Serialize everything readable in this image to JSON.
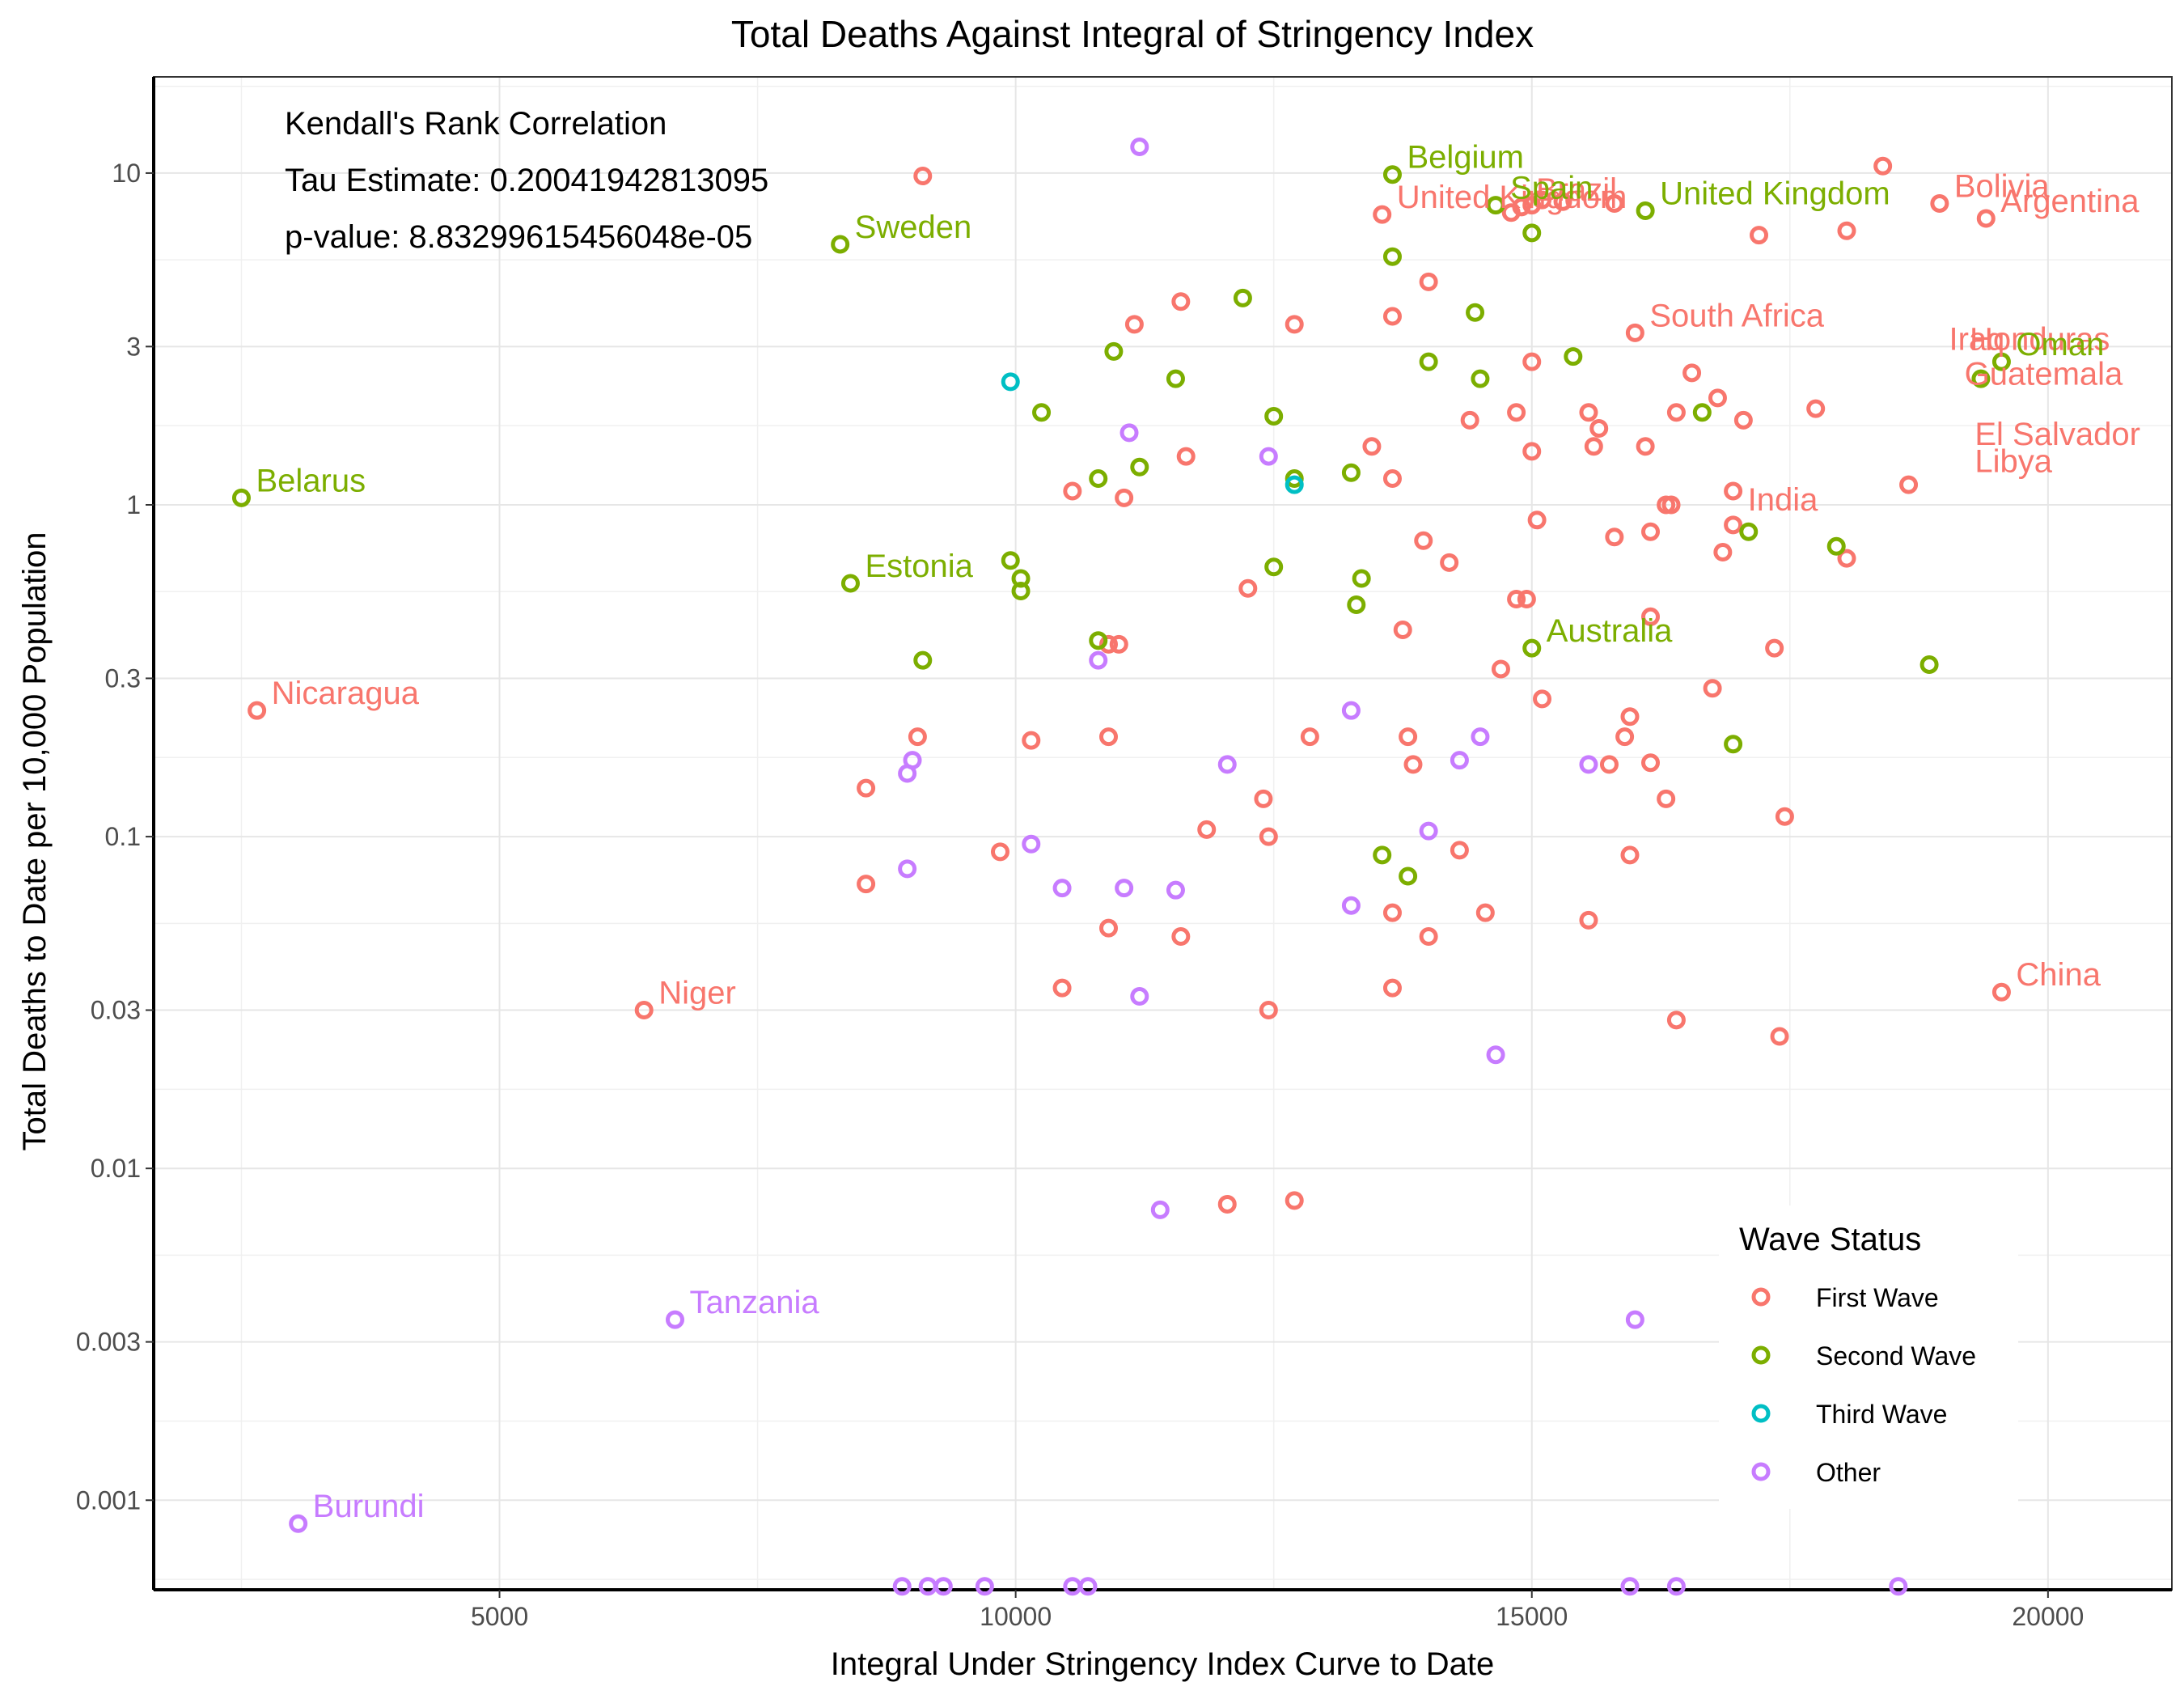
{
  "chart_data": {
    "type": "scatter",
    "title": "Total Deaths Against Integral of Stringency Index",
    "xlabel": "Integral Under Stringency Index Curve to Date",
    "ylabel": "Total Deaths to Date per 10,000 Population",
    "xlim": [
      1650,
      21200
    ],
    "ylim_log10": [
      -3.27,
      1.29
    ],
    "y_scale": "log10",
    "grid": true,
    "x_ticks": [
      {
        "value": 5000,
        "label": "5000"
      },
      {
        "value": 10000,
        "label": "10000"
      },
      {
        "value": 15000,
        "label": "15000"
      },
      {
        "value": 20000,
        "label": "20000"
      }
    ],
    "y_ticks": [
      {
        "value": 0.001,
        "label": "0.001"
      },
      {
        "value": 0.003,
        "label": "0.003"
      },
      {
        "value": 0.01,
        "label": "0.01"
      },
      {
        "value": 0.03,
        "label": "0.03"
      },
      {
        "value": 0.1,
        "label": "0.1"
      },
      {
        "value": 0.3,
        "label": "0.3"
      },
      {
        "value": 1,
        "label": "1"
      },
      {
        "value": 3,
        "label": "3"
      },
      {
        "value": 10,
        "label": "10"
      }
    ],
    "annotation_lines": [
      "Kendall's Rank Correlation",
      "Tau Estimate: 0.20041942813095",
      "p-value: 8.83299615456048e-05"
    ],
    "legend": {
      "title": "Wave Status",
      "placement": "bottom-right",
      "entries": [
        "First Wave",
        "Second Wave",
        "Third Wave",
        "Other"
      ]
    },
    "colors": {
      "First Wave": "#F8766D",
      "Second Wave": "#7CAE00",
      "Third Wave": "#00BFC4",
      "Other": "#C77CFF"
    },
    "series": [
      {
        "name": "First Wave",
        "points": [
          [
            9100,
            9.8
          ],
          [
            18400,
            10.5
          ],
          [
            13550,
            7.5
          ],
          [
            17200,
            6.5
          ],
          [
            18050,
            6.7
          ],
          [
            18950,
            8.1
          ],
          [
            19400,
            7.3
          ],
          [
            14800,
            7.6
          ],
          [
            14900,
            7.9
          ],
          [
            15000,
            8.0
          ],
          [
            15100,
            8.3
          ],
          [
            15300,
            8.2
          ],
          [
            15800,
            8.1
          ],
          [
            14000,
            4.7
          ],
          [
            11600,
            4.1
          ],
          [
            11150,
            3.5
          ],
          [
            12700,
            3.5
          ],
          [
            13650,
            3.7
          ],
          [
            16000,
            3.3
          ],
          [
            15000,
            2.7
          ],
          [
            16550,
            2.5
          ],
          [
            16800,
            2.1
          ],
          [
            17050,
            1.8
          ],
          [
            17750,
            1.95
          ],
          [
            15550,
            1.9
          ],
          [
            16400,
            1.9
          ],
          [
            14850,
            1.9
          ],
          [
            14400,
            1.8
          ],
          [
            15650,
            1.7
          ],
          [
            15600,
            1.5
          ],
          [
            16100,
            1.5
          ],
          [
            13450,
            1.5
          ],
          [
            15000,
            1.45
          ],
          [
            11650,
            1.4
          ],
          [
            13650,
            1.2
          ],
          [
            10550,
            1.1
          ],
          [
            11050,
            1.05
          ],
          [
            16950,
            1.1
          ],
          [
            18650,
            1.15
          ],
          [
            16350,
            1.0
          ],
          [
            16300,
            1.0
          ],
          [
            15050,
            0.9
          ],
          [
            16950,
            0.87
          ],
          [
            16150,
            0.83
          ],
          [
            15800,
            0.8
          ],
          [
            13950,
            0.78
          ],
          [
            16850,
            0.72
          ],
          [
            18050,
            0.69
          ],
          [
            14200,
            0.67
          ],
          [
            12250,
            0.56
          ],
          [
            14850,
            0.52
          ],
          [
            14950,
            0.52
          ],
          [
            16150,
            0.46
          ],
          [
            13750,
            0.42
          ],
          [
            10900,
            0.38
          ],
          [
            11000,
            0.38
          ],
          [
            17350,
            0.37
          ],
          [
            14700,
            0.32
          ],
          [
            16750,
            0.28
          ],
          [
            15100,
            0.26
          ],
          [
            15950,
            0.23
          ],
          [
            15900,
            0.2
          ],
          [
            9050,
            0.2
          ],
          [
            10150,
            0.195
          ],
          [
            10900,
            0.2
          ],
          [
            12850,
            0.2
          ],
          [
            13800,
            0.2
          ],
          [
            13850,
            0.165
          ],
          [
            15750,
            0.165
          ],
          [
            16150,
            0.167
          ],
          [
            8550,
            0.14
          ],
          [
            12400,
            0.13
          ],
          [
            16300,
            0.13
          ],
          [
            17450,
            0.115
          ],
          [
            11850,
            0.105
          ],
          [
            12450,
            0.1
          ],
          [
            14300,
            0.091
          ],
          [
            15950,
            0.088
          ],
          [
            9850,
            0.09
          ],
          [
            8550,
            0.072
          ],
          [
            13650,
            0.059
          ],
          [
            14550,
            0.059
          ],
          [
            15550,
            0.056
          ],
          [
            10900,
            0.053
          ],
          [
            11600,
            0.05
          ],
          [
            14000,
            0.05
          ],
          [
            19550,
            0.034
          ],
          [
            10450,
            0.035
          ],
          [
            13650,
            0.035
          ],
          [
            12450,
            0.03
          ],
          [
            16400,
            0.028
          ],
          [
            17400,
            0.025
          ],
          [
            12700,
            0.008
          ],
          [
            12050,
            0.0078
          ],
          [
            2650,
            0.24
          ],
          [
            6400,
            0.03
          ]
        ],
        "labeled": [
          {
            "name": "Nicaragua",
            "x": 2650,
            "y": 0.24
          },
          {
            "name": "Niger",
            "x": 6400,
            "y": 0.03
          },
          {
            "name": "United Kingdom",
            "x": 13550,
            "y": 7.5
          },
          {
            "name": "Brazil",
            "x": 14900,
            "y": 7.9
          },
          {
            "name": "Bolivia",
            "x": 18950,
            "y": 8.1
          },
          {
            "name": "Argentina",
            "x": 19400,
            "y": 7.3
          },
          {
            "name": "South Africa",
            "x": 16000,
            "y": 3.3
          },
          {
            "name": "Iraq",
            "x": 18900,
            "y": 2.8
          },
          {
            "name": "Honduras",
            "x": 19100,
            "y": 2.8
          },
          {
            "name": "Guatemala",
            "x": 19050,
            "y": 2.2
          },
          {
            "name": "El Salvador",
            "x": 19150,
            "y": 1.45
          },
          {
            "name": "Libya",
            "x": 19150,
            "y": 1.2
          },
          {
            "name": "India",
            "x": 16950,
            "y": 0.92
          },
          {
            "name": "China",
            "x": 19550,
            "y": 0.034
          }
        ]
      },
      {
        "name": "Second Wave",
        "points": [
          [
            13650,
            9.9
          ],
          [
            14650,
            8.0
          ],
          [
            16100,
            7.7
          ],
          [
            15000,
            6.6
          ],
          [
            8300,
            6.1
          ],
          [
            13650,
            5.6
          ],
          [
            12200,
            4.2
          ],
          [
            14450,
            3.8
          ],
          [
            15400,
            2.8
          ],
          [
            10950,
            2.9
          ],
          [
            14000,
            2.7
          ],
          [
            11550,
            2.4
          ],
          [
            14500,
            2.4
          ],
          [
            10250,
            1.9
          ],
          [
            12500,
            1.85
          ],
          [
            16650,
            1.9
          ],
          [
            11200,
            1.3
          ],
          [
            10800,
            1.2
          ],
          [
            12700,
            1.2
          ],
          [
            13250,
            1.25
          ],
          [
            19350,
            2.4
          ],
          [
            19550,
            2.7
          ],
          [
            17100,
            0.83
          ],
          [
            17950,
            0.75
          ],
          [
            9950,
            0.68
          ],
          [
            12500,
            0.65
          ],
          [
            10050,
            0.6
          ],
          [
            10050,
            0.55
          ],
          [
            13350,
            0.6
          ],
          [
            13300,
            0.5
          ],
          [
            10800,
            0.39
          ],
          [
            15000,
            0.37
          ],
          [
            9100,
            0.34
          ],
          [
            18850,
            0.33
          ],
          [
            16950,
            0.19
          ],
          [
            13550,
            0.088
          ],
          [
            13800,
            0.076
          ],
          [
            2500,
            1.05
          ],
          [
            8400,
            0.58
          ]
        ],
        "labeled": [
          {
            "name": "Belarus",
            "x": 2500,
            "y": 1.05
          },
          {
            "name": "Estonia",
            "x": 8400,
            "y": 0.58
          },
          {
            "name": "Sweden",
            "x": 8300,
            "y": 6.1
          },
          {
            "name": "Belgium",
            "x": 13650,
            "y": 9.9
          },
          {
            "name": "Spain",
            "x": 14650,
            "y": 8.0
          },
          {
            "name": "United Kingdom",
            "x": 16100,
            "y": 7.7
          },
          {
            "name": "Oman",
            "x": 19550,
            "y": 2.7
          },
          {
            "name": "Australia",
            "x": 15000,
            "y": 0.37
          }
        ]
      },
      {
        "name": "Third Wave",
        "points": [
          [
            9950,
            2.35
          ],
          [
            12700,
            1.15
          ]
        ],
        "labeled": []
      },
      {
        "name": "Other",
        "points": [
          [
            11200,
            12.0
          ],
          [
            11100,
            1.65
          ],
          [
            12450,
            1.4
          ],
          [
            10800,
            0.34
          ],
          [
            13250,
            0.24
          ],
          [
            14500,
            0.2
          ],
          [
            9000,
            0.17
          ],
          [
            8950,
            0.155
          ],
          [
            12050,
            0.165
          ],
          [
            14300,
            0.17
          ],
          [
            15550,
            0.165
          ],
          [
            14000,
            0.104
          ],
          [
            10150,
            0.095
          ],
          [
            8950,
            0.08
          ],
          [
            10450,
            0.07
          ],
          [
            11050,
            0.07
          ],
          [
            11550,
            0.069
          ],
          [
            13250,
            0.062
          ],
          [
            11200,
            0.033
          ],
          [
            14650,
            0.022
          ],
          [
            11400,
            0.0075
          ],
          [
            16000,
            0.0035
          ],
          [
            6700,
            0.0035
          ],
          [
            3050,
            0.00085
          ],
          [
            8900,
            0.00055
          ],
          [
            9150,
            0.00055
          ],
          [
            9300,
            0.00055
          ],
          [
            9700,
            0.00055
          ],
          [
            10550,
            0.00055
          ],
          [
            10700,
            0.00055
          ],
          [
            15950,
            0.00055
          ],
          [
            16400,
            0.00055
          ],
          [
            18550,
            0.00055
          ]
        ],
        "labeled": [
          {
            "name": "Tanzania",
            "x": 6700,
            "y": 0.0035
          },
          {
            "name": "Burundi",
            "x": 3050,
            "y": 0.00085
          }
        ]
      }
    ]
  }
}
